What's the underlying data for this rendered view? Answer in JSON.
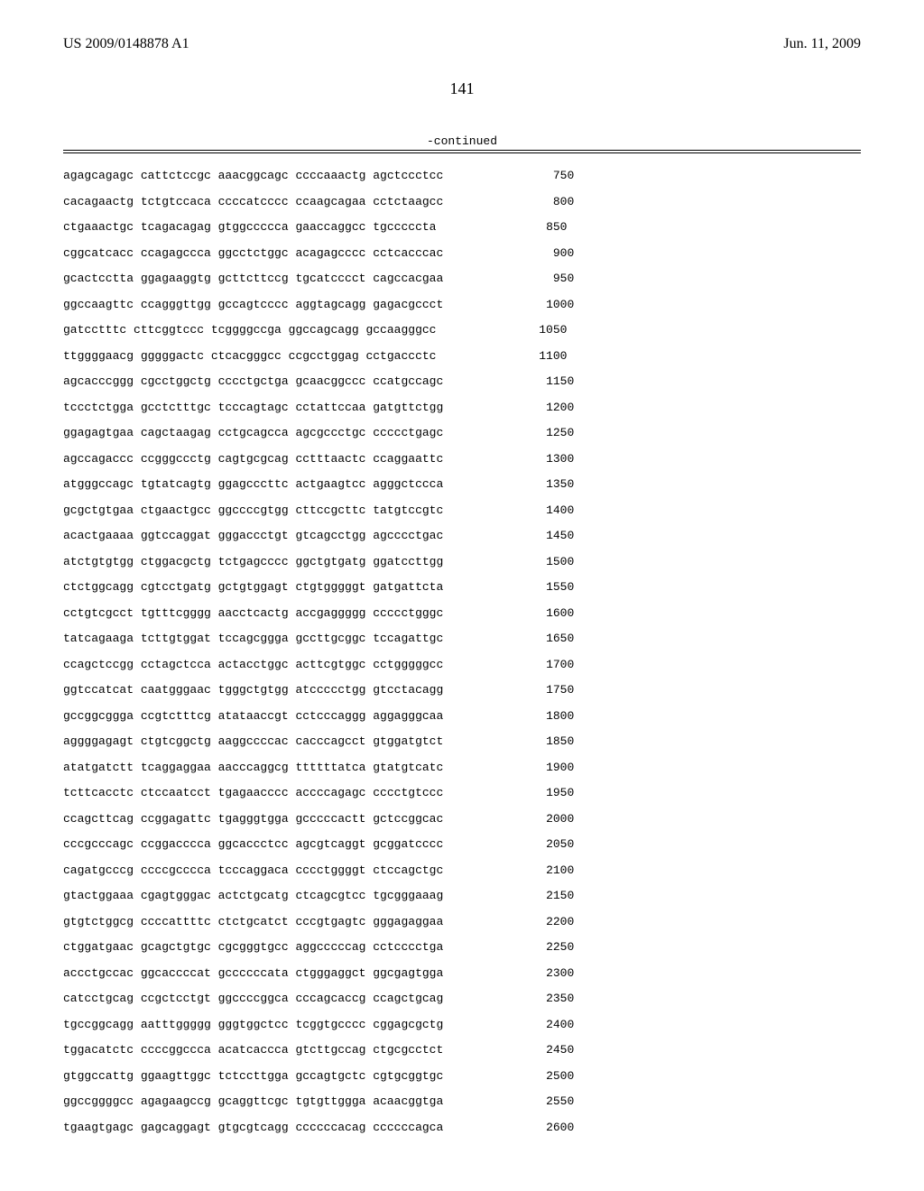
{
  "header": {
    "patent_number": "US 2009/0148878 A1",
    "date": "Jun. 11, 2009"
  },
  "page_number": "141",
  "continued_label": "-continued",
  "sequence_rows": [
    {
      "seq": "agagcagagc cattctccgc aaacggcagc ccccaaactg agctccctcc",
      "pos": "750"
    },
    {
      "seq": "cacagaactg tctgtccaca ccccatcccc ccaagcagaa cctctaagcc",
      "pos": "800"
    },
    {
      "seq": "ctgaaactgc tcagacagag gtggccccca gaaccaggcc tgcccccta",
      "pos": "850"
    },
    {
      "seq": "cggcatcacc ccagagccca ggcctctggc acagagcccc cctcacccac",
      "pos": "900"
    },
    {
      "seq": "gcactcctta ggagaaggtg gcttcttccg tgcatcccct cagccacgaa",
      "pos": "950"
    },
    {
      "seq": "ggccaagttc ccagggttgg gccagtcccc aggtagcagg gagacgccct",
      "pos": "1000"
    },
    {
      "seq": "gatcctttc cttcggtccc tcggggccga ggccagcagg gccaagggcc",
      "pos": "1050"
    },
    {
      "seq": "ttggggaacg gggggactc ctcacgggcc ccgcctggag cctgaccctc",
      "pos": "1100"
    },
    {
      "seq": "agcacccggg cgcctggctg cccctgctga gcaacggccc ccatgccagc",
      "pos": "1150"
    },
    {
      "seq": "tccctctgga gcctctttgc tcccagtagc cctattccaa gatgttctgg",
      "pos": "1200"
    },
    {
      "seq": "ggagagtgaa cagctaagag cctgcagcca agcgccctgc ccccctgagc",
      "pos": "1250"
    },
    {
      "seq": "agccagaccc ccgggccctg cagtgcgcag cctttaactc ccaggaattc",
      "pos": "1300"
    },
    {
      "seq": "atgggccagc tgtatcagtg ggagcccttc actgaagtcc agggctccca",
      "pos": "1350"
    },
    {
      "seq": "gcgctgtgaa ctgaactgcc ggccccgtgg cttccgcttc tatgtccgtc",
      "pos": "1400"
    },
    {
      "seq": "acactgaaaa ggtccaggat gggaccctgt gtcagcctgg agcccctgac",
      "pos": "1450"
    },
    {
      "seq": "atctgtgtgg ctggacgctg tctgagcccc ggctgtgatg ggatccttgg",
      "pos": "1500"
    },
    {
      "seq": "ctctggcagg cgtcctgatg gctgtggagt ctgtgggggt gatgattcta",
      "pos": "1550"
    },
    {
      "seq": "cctgtcgcct tgtttcgggg aacctcactg accgaggggg ccccctgggc",
      "pos": "1600"
    },
    {
      "seq": "tatcagaaga tcttgtggat tccagcggga gccttgcggc tccagattgc",
      "pos": "1650"
    },
    {
      "seq": "ccagctccgg cctagctcca actacctggc acttcgtggc cctgggggcc",
      "pos": "1700"
    },
    {
      "seq": "ggtccatcat caatgggaac tgggctgtgg atccccctgg gtcctacagg",
      "pos": "1750"
    },
    {
      "seq": "gccggcggga ccgtctttcg atataaccgt cctcccaggg aggagggcaa",
      "pos": "1800"
    },
    {
      "seq": "aggggagagt ctgtcggctg aaggccccac cacccagcct gtggatgtct",
      "pos": "1850"
    },
    {
      "seq": "atatgatctt tcaggaggaa aacccaggcg ttttttatca gtatgtcatc",
      "pos": "1900"
    },
    {
      "seq": "tcttcacctc ctccaatcct tgagaacccc accccagagc cccctgtccc",
      "pos": "1950"
    },
    {
      "seq": "ccagcttcag ccggagattc tgagggtgga gcccccactt gctccggcac",
      "pos": "2000"
    },
    {
      "seq": "cccgcccagc ccggacccca ggcaccctcc agcgtcaggt gcggatcccc",
      "pos": "2050"
    },
    {
      "seq": "cagatgcccg ccccgcccca tcccaggaca cccctggggt ctccagctgc",
      "pos": "2100"
    },
    {
      "seq": "gtactggaaa cgagtgggac actctgcatg ctcagcgtcc tgcgggaaag",
      "pos": "2150"
    },
    {
      "seq": "gtgtctggcg ccccattttc ctctgcatct cccgtgagtc gggagaggaa",
      "pos": "2200"
    },
    {
      "seq": "ctggatgaac gcagctgtgc cgcgggtgcc aggcccccag cctcccctga",
      "pos": "2250"
    },
    {
      "seq": "accctgccac ggcaccccat gccccccata ctgggaggct ggcgagtgga",
      "pos": "2300"
    },
    {
      "seq": "catcctgcag ccgctcctgt ggccccggca cccagcaccg ccagctgcag",
      "pos": "2350"
    },
    {
      "seq": "tgccggcagg aatttggggg gggtggctcc tcggtgcccc cggagcgctg",
      "pos": "2400"
    },
    {
      "seq": "tggacatctc ccccggccca acatcaccca gtcttgccag ctgcgcctct",
      "pos": "2450"
    },
    {
      "seq": "gtggccattg ggaagttggc tctccttgga gccagtgctc cgtgcggtgc",
      "pos": "2500"
    },
    {
      "seq": "ggccggggcc agagaagccg gcaggttcgc tgtgttggga acaacggtga",
      "pos": "2550"
    },
    {
      "seq": "tgaagtgagc gagcaggagt gtgcgtcagg ccccccacag ccccccagca",
      "pos": "2600"
    }
  ],
  "colors": {
    "text": "#000000",
    "background": "#ffffff",
    "rule": "#000000"
  },
  "fonts": {
    "body_family": "Times New Roman",
    "mono_family": "Courier New",
    "header_size_pt": 12,
    "pagenum_size_pt": 13,
    "seq_size_pt": 10
  }
}
